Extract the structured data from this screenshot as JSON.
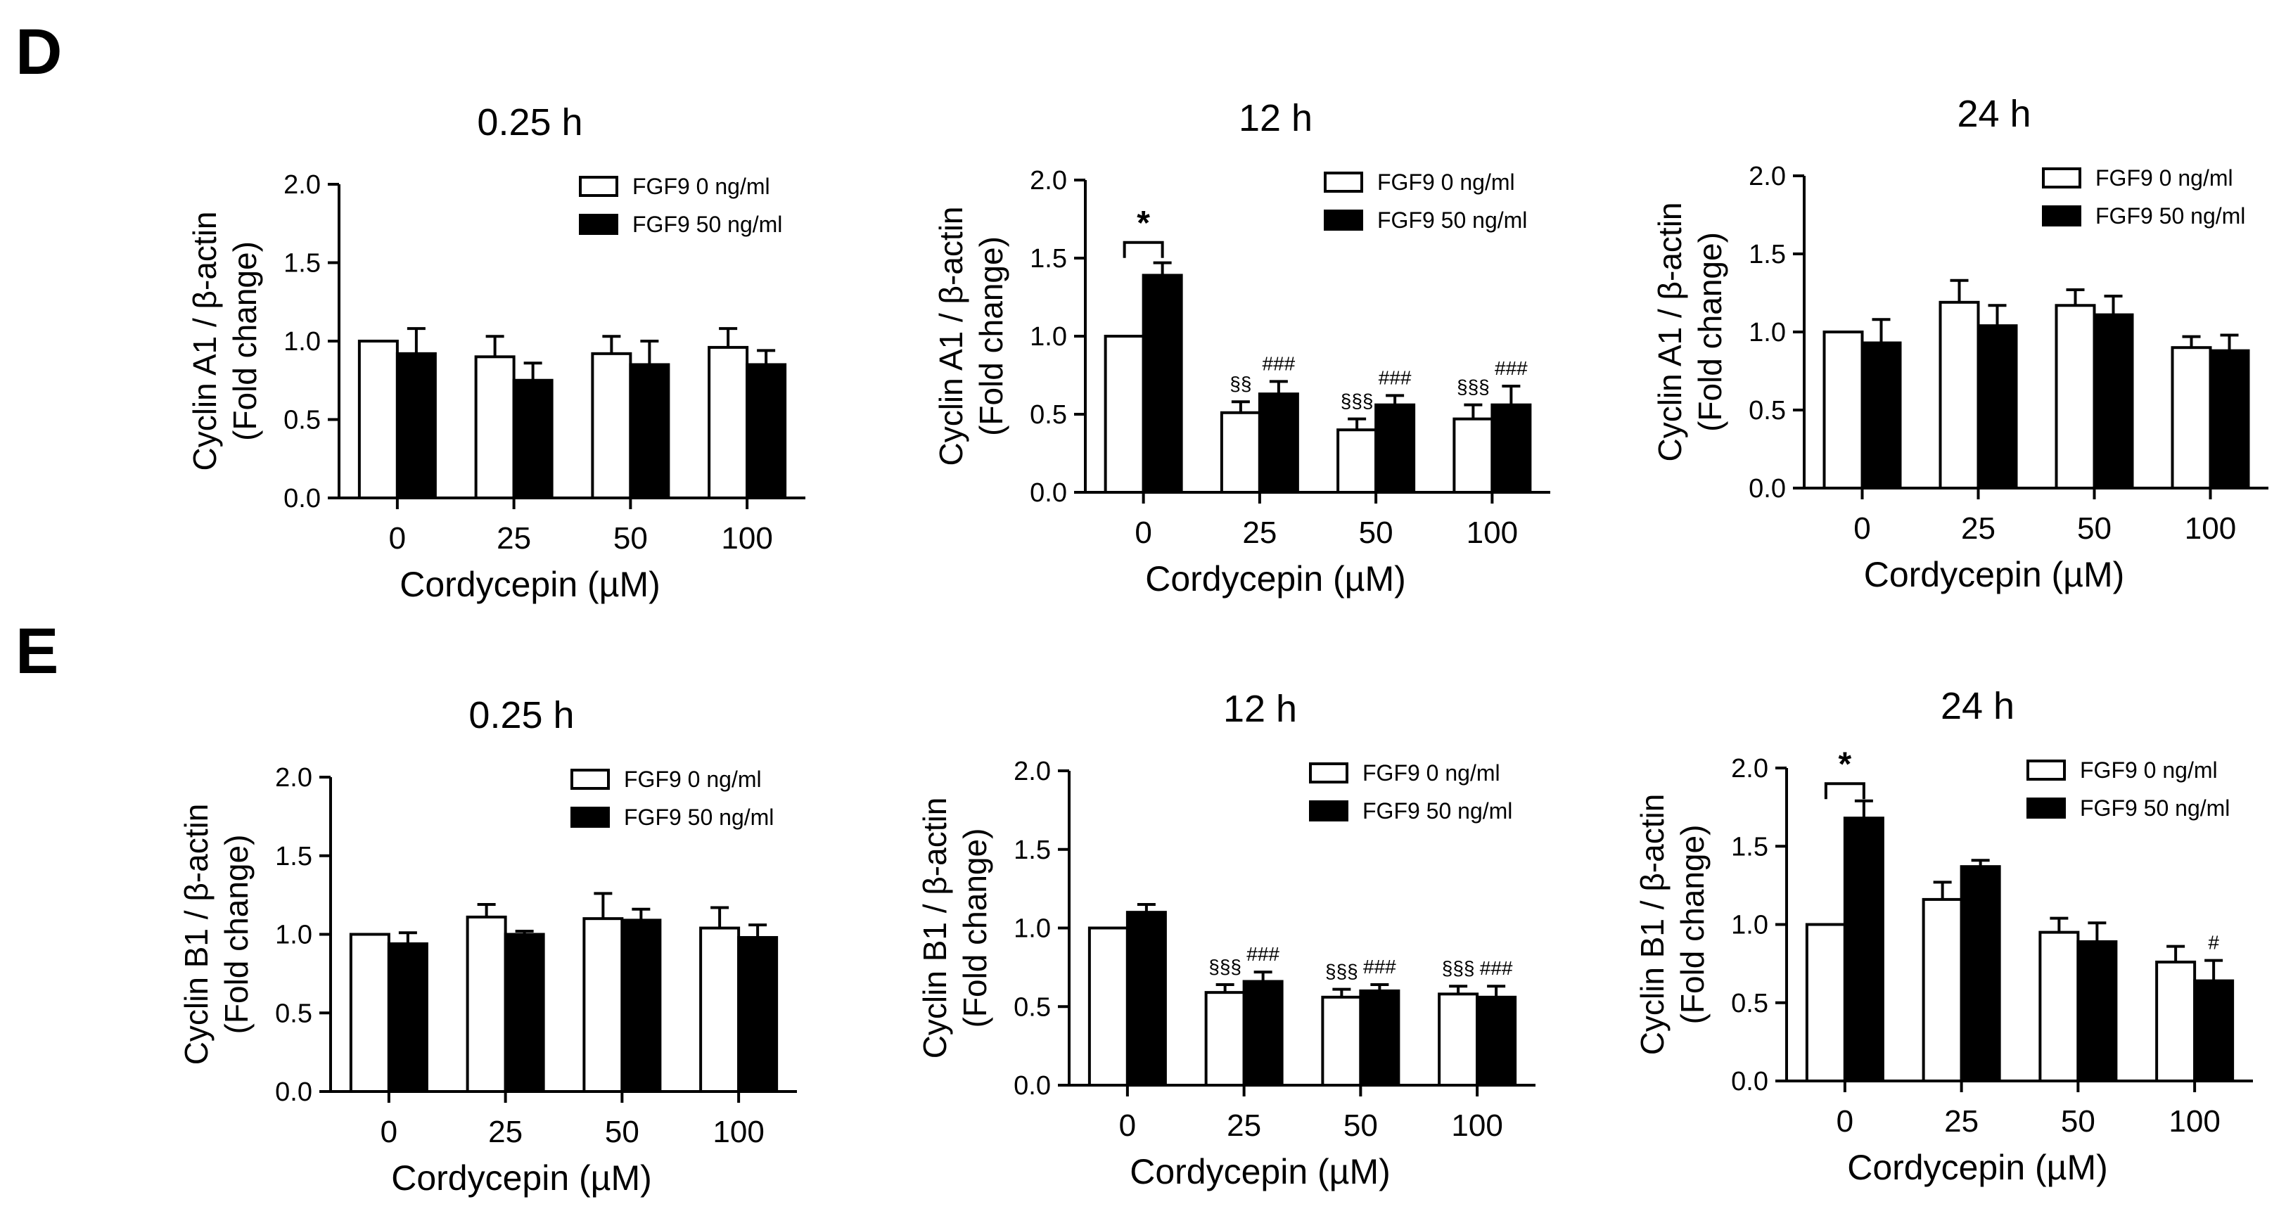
{
  "panels": [
    {
      "letter": "D"
    },
    {
      "letter": "E"
    }
  ],
  "legend": {
    "open": "FGF9 0 ng/ml",
    "filled": "FGF9 50 ng/ml"
  },
  "colors": {
    "open": "#ffffff",
    "filled": "#000000",
    "stroke": "#000000",
    "bg": "#ffffff"
  },
  "chart_data": [
    {
      "type": "bar",
      "title": "0.25 h",
      "xlabel": "Cordycepin (µM)",
      "ylabel": "Cyclin A1 / β-actin",
      "ylabel2": "(Fold change)",
      "categories": [
        "0",
        "25",
        "50",
        "100"
      ],
      "ylim": [
        0,
        2.0
      ],
      "yticks": [
        "0.0",
        "0.5",
        "1.0",
        "1.5",
        "2.0"
      ],
      "series": [
        {
          "name": "FGF9 0 ng/ml",
          "values": [
            1.0,
            0.9,
            0.92,
            0.96
          ],
          "errors": [
            0,
            0.13,
            0.11,
            0.12
          ]
        },
        {
          "name": "FGF9 50 ng/ml",
          "values": [
            0.92,
            0.75,
            0.85,
            0.85
          ],
          "errors": [
            0.16,
            0.11,
            0.15,
            0.09
          ]
        }
      ],
      "marks": [],
      "bracket": null
    },
    {
      "type": "bar",
      "title": "12 h",
      "xlabel": "Cordycepin (µM)",
      "ylabel": "Cyclin A1 / β-actin",
      "ylabel2": "(Fold change)",
      "categories": [
        "0",
        "25",
        "50",
        "100"
      ],
      "ylim": [
        0,
        2.0
      ],
      "yticks": [
        "0.0",
        "0.5",
        "1.0",
        "1.5",
        "2.0"
      ],
      "series": [
        {
          "name": "FGF9 0 ng/ml",
          "values": [
            1.0,
            0.51,
            0.4,
            0.47
          ],
          "errors": [
            0,
            0.07,
            0.07,
            0.09
          ]
        },
        {
          "name": "FGF9 50 ng/ml",
          "values": [
            1.39,
            0.63,
            0.56,
            0.56
          ],
          "errors": [
            0.08,
            0.08,
            0.06,
            0.12
          ]
        }
      ],
      "marks": [
        {
          "cat": 1,
          "series": 0,
          "text": "§§"
        },
        {
          "cat": 1,
          "series": 1,
          "text": "###"
        },
        {
          "cat": 2,
          "series": 0,
          "text": "§§§"
        },
        {
          "cat": 2,
          "series": 1,
          "text": "###"
        },
        {
          "cat": 3,
          "series": 0,
          "text": "§§§"
        },
        {
          "cat": 3,
          "series": 1,
          "text": "###"
        }
      ],
      "bracket": {
        "text": "*",
        "level": 1.6
      }
    },
    {
      "type": "bar",
      "title": "24 h",
      "xlabel": "Cordycepin (µM)",
      "ylabel": "Cyclin A1 / β-actin",
      "ylabel2": "(Fold change)",
      "categories": [
        "0",
        "25",
        "50",
        "100"
      ],
      "ylim": [
        0,
        2.0
      ],
      "yticks": [
        "0.0",
        "0.5",
        "1.0",
        "1.5",
        "2.0"
      ],
      "series": [
        {
          "name": "FGF9 0 ng/ml",
          "values": [
            1.0,
            1.19,
            1.17,
            0.9
          ],
          "errors": [
            0,
            0.14,
            0.1,
            0.07
          ]
        },
        {
          "name": "FGF9 50 ng/ml",
          "values": [
            0.93,
            1.04,
            1.11,
            0.88
          ],
          "errors": [
            0.15,
            0.13,
            0.12,
            0.1
          ]
        }
      ],
      "marks": [],
      "bracket": null
    },
    {
      "type": "bar",
      "title": "0.25 h",
      "xlabel": "Cordycepin (µM)",
      "ylabel": "Cyclin B1 / β-actin",
      "ylabel2": "(Fold change)",
      "categories": [
        "0",
        "25",
        "50",
        "100"
      ],
      "ylim": [
        0,
        2.0
      ],
      "yticks": [
        "0.0",
        "0.5",
        "1.0",
        "1.5",
        "2.0"
      ],
      "series": [
        {
          "name": "FGF9 0 ng/ml",
          "values": [
            1.0,
            1.11,
            1.1,
            1.04
          ],
          "errors": [
            0,
            0.08,
            0.16,
            0.13
          ]
        },
        {
          "name": "FGF9 50 ng/ml",
          "values": [
            0.94,
            1.0,
            1.09,
            0.98
          ],
          "errors": [
            0.07,
            0.02,
            0.07,
            0.08
          ]
        }
      ],
      "marks": [],
      "bracket": null
    },
    {
      "type": "bar",
      "title": "12 h",
      "xlabel": "Cordycepin (µM)",
      "ylabel": "Cyclin B1 / β-actin",
      "ylabel2": "(Fold change)",
      "categories": [
        "0",
        "25",
        "50",
        "100"
      ],
      "ylim": [
        0,
        2.0
      ],
      "yticks": [
        "0.0",
        "0.5",
        "1.0",
        "1.5",
        "2.0"
      ],
      "series": [
        {
          "name": "FGF9 0 ng/ml",
          "values": [
            1.0,
            0.59,
            0.56,
            0.58
          ],
          "errors": [
            0,
            0.05,
            0.05,
            0.05
          ]
        },
        {
          "name": "FGF9 50 ng/ml",
          "values": [
            1.1,
            0.66,
            0.6,
            0.56
          ],
          "errors": [
            0.05,
            0.06,
            0.04,
            0.07
          ]
        }
      ],
      "marks": [
        {
          "cat": 1,
          "series": 0,
          "text": "§§§"
        },
        {
          "cat": 1,
          "series": 1,
          "text": "###"
        },
        {
          "cat": 2,
          "series": 0,
          "text": "§§§"
        },
        {
          "cat": 2,
          "series": 1,
          "text": "###"
        },
        {
          "cat": 3,
          "series": 0,
          "text": "§§§"
        },
        {
          "cat": 3,
          "series": 1,
          "text": "###"
        }
      ],
      "bracket": null
    },
    {
      "type": "bar",
      "title": "24 h",
      "xlabel": "Cordycepin (µM)",
      "ylabel": "Cyclin B1 / β-actin",
      "ylabel2": "(Fold change)",
      "categories": [
        "0",
        "25",
        "50",
        "100"
      ],
      "ylim": [
        0,
        2.0
      ],
      "yticks": [
        "0.0",
        "0.5",
        "1.0",
        "1.5",
        "2.0"
      ],
      "series": [
        {
          "name": "FGF9 0 ng/ml",
          "values": [
            1.0,
            1.16,
            0.95,
            0.76
          ],
          "errors": [
            0,
            0.11,
            0.09,
            0.1
          ]
        },
        {
          "name": "FGF9 50 ng/ml",
          "values": [
            1.68,
            1.37,
            0.89,
            0.64
          ],
          "errors": [
            0.11,
            0.04,
            0.12,
            0.13
          ]
        }
      ],
      "marks": [
        {
          "cat": 3,
          "series": 1,
          "text": "#"
        }
      ],
      "bracket": {
        "text": "*",
        "level": 1.9
      }
    }
  ]
}
